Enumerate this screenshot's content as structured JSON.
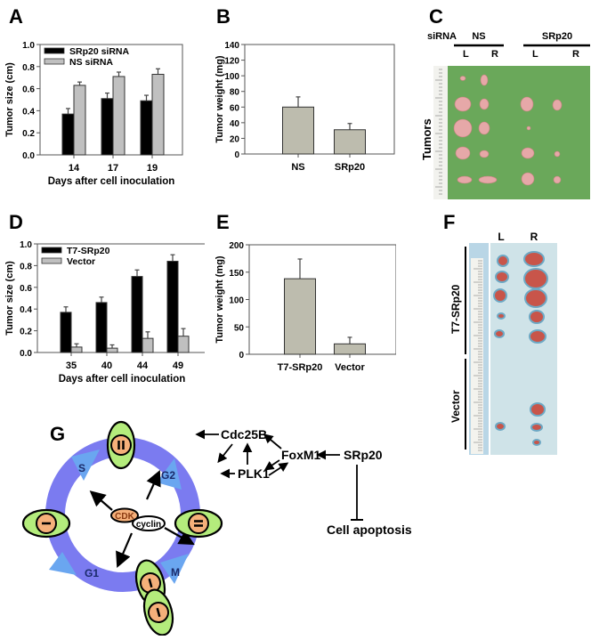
{
  "panels": {
    "A": "A",
    "B": "B",
    "C": "C",
    "D": "D",
    "E": "E",
    "F": "F",
    "G": "G"
  },
  "chart_data": [
    {
      "id": "A",
      "type": "bar",
      "title": "",
      "xlabel": "Days after cell inoculation",
      "ylabel": "Tumor size (cm)",
      "ylim": [
        0,
        1.0
      ],
      "yticks": [
        "0.0",
        "0.2",
        "0.4",
        "0.6",
        "0.8",
        "1.0"
      ],
      "categories": [
        "14",
        "17",
        "19"
      ],
      "legend_position": "upper-left",
      "series": [
        {
          "name": "SRp20 siRNA",
          "color": "#000000",
          "values": [
            0.37,
            0.51,
            0.49
          ],
          "errors": [
            0.05,
            0.05,
            0.05
          ]
        },
        {
          "name": "NS siRNA",
          "color": "#c0c0c0",
          "values": [
            0.63,
            0.71,
            0.73
          ],
          "errors": [
            0.03,
            0.04,
            0.05
          ]
        }
      ]
    },
    {
      "id": "B",
      "type": "bar",
      "title": "",
      "xlabel": "",
      "ylabel": "Tumor weight (mg)",
      "ylim": [
        0,
        140
      ],
      "yticks": [
        "0",
        "20",
        "40",
        "60",
        "80",
        "100",
        "120",
        "140"
      ],
      "categories": [
        "NS",
        "SRp20"
      ],
      "series": [
        {
          "name": "Tumor weight",
          "color": "#bdbcae",
          "values": [
            60,
            31
          ],
          "errors": [
            13,
            8
          ]
        }
      ]
    },
    {
      "id": "D",
      "type": "bar",
      "title": "",
      "xlabel": "Days after cell inoculation",
      "ylabel": "Tumor size (cm)",
      "ylim": [
        0,
        1.0
      ],
      "yticks": [
        "0.0",
        "0.2",
        "0.4",
        "0.6",
        "0.8",
        "1.0"
      ],
      "categories": [
        "35",
        "40",
        "44",
        "49"
      ],
      "legend_position": "upper-left",
      "series": [
        {
          "name": "T7-SRp20",
          "color": "#000000",
          "values": [
            0.37,
            0.46,
            0.7,
            0.84
          ],
          "errors": [
            0.05,
            0.05,
            0.06,
            0.06
          ]
        },
        {
          "name": "Vector",
          "color": "#c0c0c0",
          "values": [
            0.05,
            0.04,
            0.13,
            0.15
          ],
          "errors": [
            0.03,
            0.03,
            0.06,
            0.07
          ]
        }
      ]
    },
    {
      "id": "E",
      "type": "bar",
      "title": "",
      "xlabel": "",
      "ylabel": "Tumor weight (mg)",
      "ylim": [
        0,
        200
      ],
      "yticks": [
        "0",
        "50",
        "100",
        "150",
        "200"
      ],
      "categories": [
        "T7-SRp20",
        "Vector"
      ],
      "series": [
        {
          "name": "Tumor weight",
          "color": "#bdbcae",
          "values": [
            138,
            19
          ],
          "errors": [
            36,
            12
          ]
        }
      ]
    }
  ],
  "panelC": {
    "sirna_label": "siRNA",
    "groups": [
      {
        "name": "NS",
        "sides": [
          "L",
          "R"
        ]
      },
      {
        "name": "SRp20",
        "sides": [
          "L",
          "R"
        ]
      }
    ],
    "row_label": "Tumors",
    "background_color": "#6aa85a"
  },
  "panelF": {
    "columns": [
      "L",
      "R"
    ],
    "groups": [
      "T7-SRp20",
      "Vector"
    ],
    "background_color": "#cfe3e8"
  },
  "panelG": {
    "phases": [
      "S",
      "G2",
      "M",
      "G1"
    ],
    "cdk": "CDK",
    "cyclin": "cyclin",
    "nodes": {
      "cdc25b": "Cdc25B",
      "plk1": "PLK1",
      "foxm1": "FoxM1",
      "srp20": "SRp20",
      "apoptosis": "Cell apoptosis"
    },
    "colors": {
      "ring": "#7b7bf0",
      "phase_arrow": "#6aa6f0",
      "cell": "#b4ec7c",
      "nucleus": "#f5b07a"
    }
  }
}
